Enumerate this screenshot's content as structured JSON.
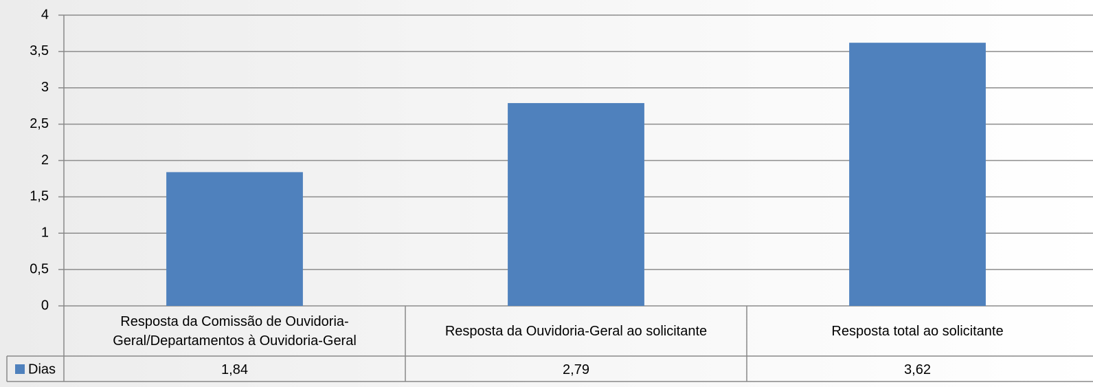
{
  "chart_data": {
    "type": "bar",
    "categories": [
      "Resposta da Comissão de Ouvidoria-Geral/Departamentos à Ouvidoria-Geral",
      "Resposta da Ouvidoria-Geral ao solicitante",
      "Resposta total ao solicitante"
    ],
    "series": [
      {
        "name": "Dias",
        "color": "#4f81bd",
        "values": [
          1.84,
          2.79,
          3.62
        ],
        "value_labels": [
          "1,84",
          "2,79",
          "3,62"
        ]
      }
    ],
    "ylim": [
      0,
      4
    ],
    "yticks": [
      0,
      {
        "value": 0.5,
        "label": "0,5"
      },
      1,
      {
        "value": 1.5,
        "label": "1,5"
      },
      2,
      {
        "value": 2.5,
        "label": "2,5"
      },
      3,
      {
        "value": 3.5,
        "label": "3,5"
      },
      4
    ],
    "grid": true
  }
}
